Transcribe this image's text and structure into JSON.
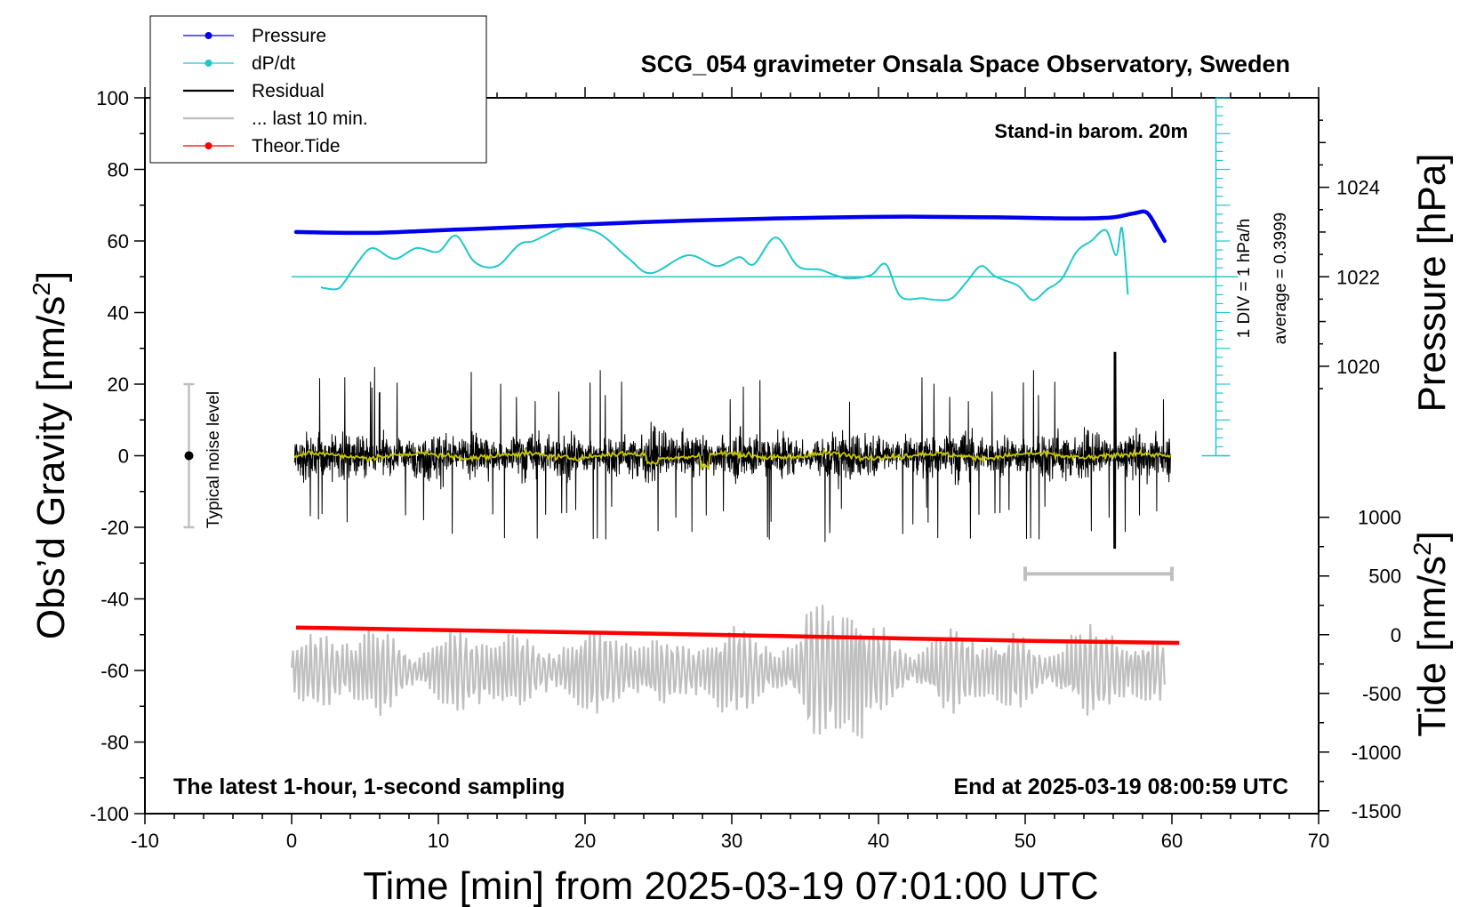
{
  "chart_data": {
    "type": "line",
    "title": "SCG_054 gravimeter Onsala Space Observatory, Sweden",
    "stand_in_label": "Stand-in barom. 20m",
    "footer_left": "The latest 1-hour, 1-second sampling",
    "footer_right": "End at 2025-03-19 08:00:59 UTC",
    "xlabel": "Time [min] from 2025-03-19 07:01:00 UTC",
    "ylabel_left_base": "Obs’d Gravity [nm/s",
    "ylabel_right_top": "Pressure [hPa]",
    "ylabel_right_bottom_base": "Tide [nm/s",
    "unit_power": "2",
    "unit_close": "]",
    "xlim": [
      -10,
      70
    ],
    "xticks": [
      "-10",
      "0",
      "10",
      "20",
      "30",
      "40",
      "50",
      "60",
      "70"
    ],
    "ylim": [
      -100,
      100
    ],
    "yticks": [
      "-100",
      "-80",
      "-60",
      "-40",
      "-20",
      "0",
      "20",
      "40",
      "60",
      "80",
      "100"
    ],
    "pressure_ticks": [
      "1024",
      "1022",
      "1020"
    ],
    "pressure_tick_values": [
      1024,
      1022,
      1020
    ],
    "tide_ticks": [
      "1000",
      "500",
      "0",
      "-500",
      "-1000",
      "-1500"
    ],
    "tide_tick_values": [
      1000,
      500,
      0,
      -500,
      -1000,
      -1500
    ],
    "noise_label": "Typical noise level",
    "noise_bar": [
      -20,
      20
    ],
    "dpdt_div_label": "1 DIV = 1 hPa/h",
    "dpdt_average_label": "average = 0.3999",
    "legend_position": "top-left",
    "legend": [
      {
        "name": "Pressure",
        "color": "#0000ee",
        "marker": true
      },
      {
        "name": "dP/dt",
        "color": "#20c8c8",
        "marker": true
      },
      {
        "name": "Residual",
        "color": "#000000",
        "marker": false
      },
      {
        "name": "... last 10 min.",
        "color": "#bfbfbf",
        "marker": false
      },
      {
        "name": "Theor.Tide",
        "color": "#ff0000",
        "marker": true
      }
    ],
    "series": [
      {
        "name": "Pressure",
        "color": "#0000ee",
        "x": [
          0.3,
          3,
          6,
          9,
          12,
          15,
          18,
          21,
          24,
          27,
          30,
          33,
          36,
          39,
          42,
          45,
          48,
          51,
          54,
          56,
          57.5,
          58.3,
          59,
          59.5
        ],
        "y": [
          62.5,
          62.3,
          62.3,
          62.8,
          63.3,
          63.8,
          64.3,
          64.8,
          65.3,
          65.7,
          66.0,
          66.3,
          66.5,
          66.7,
          66.8,
          66.7,
          66.6,
          66.4,
          66.3,
          66.6,
          67.8,
          67.9,
          63.5,
          60.0
        ]
      },
      {
        "name": "dP/dt",
        "color": "#20c8c8",
        "baseline": 50,
        "x": [
          2,
          3,
          3.5,
          4.5,
          5.5,
          7,
          8.5,
          10,
          11.2,
          12.5,
          14,
          15.5,
          16.5,
          18,
          19,
          21,
          23,
          24.5,
          27,
          29,
          30.5,
          31.5,
          33,
          34.5,
          36,
          37,
          38,
          39.5,
          40.5,
          41.5,
          43,
          44,
          45,
          46,
          47,
          48,
          49.5,
          50.5,
          51.5,
          52.5,
          53.5,
          54.5,
          55.5,
          56.2,
          56.6,
          57
        ],
        "y": [
          47,
          46.5,
          48,
          54,
          58,
          55,
          58,
          57,
          61.5,
          54,
          53,
          59,
          60,
          63,
          64,
          62,
          55,
          51,
          56,
          53,
          55.5,
          53.5,
          61,
          53,
          52,
          50.5,
          49.5,
          50.5,
          53.5,
          44.5,
          44,
          43.5,
          44,
          48.5,
          53,
          50,
          47.5,
          43.5,
          46.5,
          49.5,
          57,
          60,
          63,
          56,
          63.5,
          45
        ]
      },
      {
        "name": "Residual",
        "color": "#000000",
        "x_range": [
          0.2,
          59.9
        ],
        "amplitude": 14,
        "peaks": [
          25,
          30
        ]
      },
      {
        "name": "Smoothed residual",
        "color": "#c8c800",
        "x_range": [
          0.2,
          59.9
        ],
        "amplitude": 1.5
      },
      {
        "name": "Theor.Tide",
        "color": "#ff0000",
        "x": [
          0.3,
          10,
          20,
          30,
          40,
          50,
          60.5
        ],
        "y": [
          -48.0,
          -48.7,
          -49.4,
          -50.1,
          -50.9,
          -51.7,
          -52.3
        ]
      },
      {
        "name": "... last 10 min.",
        "color": "#bfbfbf",
        "x_range": [
          0,
          59.5
        ],
        "center": -60,
        "amplitude": 10
      }
    ],
    "last10_bar": {
      "x": [
        50,
        60
      ],
      "y": -33
    }
  }
}
